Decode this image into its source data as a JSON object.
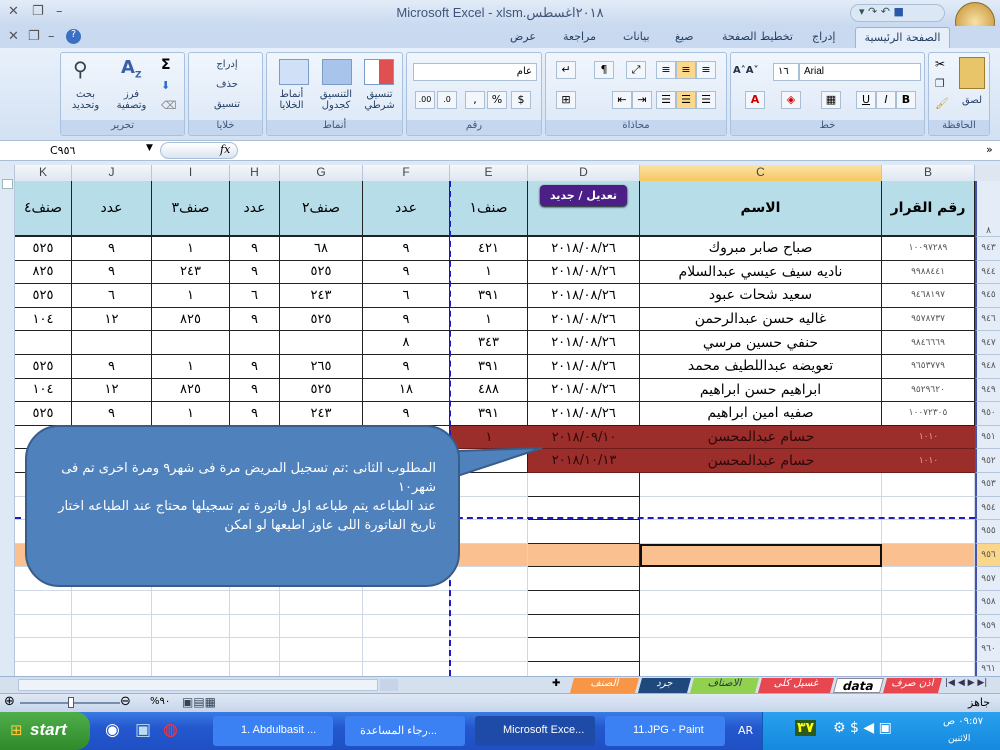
{
  "window": {
    "title": "Microsoft Excel - xlsm.٢٠١٨اغسطس"
  },
  "ribbon": {
    "tabs": [
      "الصفحة الرئيسية",
      "إدراج",
      "تخطيط الصفحة",
      "صيغ",
      "بيانات",
      "مراجعة",
      "عرض"
    ],
    "clipboard": {
      "label": "الحافظة",
      "paste": "لصق"
    },
    "font": {
      "label": "خط",
      "name": "Arial",
      "size": "١٦",
      "bold": "B",
      "italic": "I",
      "underline": "U"
    },
    "alignment": {
      "label": "محاذاة"
    },
    "number": {
      "label": "رقم",
      "format": "عام",
      "percent": "%",
      "comma": ",",
      "inc_decimal": ".00",
      "dec_decimal": ".0"
    },
    "styles": {
      "label": "أنماط",
      "conditional": "تنسيق شرطي",
      "as_table": "التنسيق كجدول",
      "cell_styles": "أنماط الخلايا"
    },
    "cells": {
      "label": "خلايا",
      "insert": "إدراج",
      "delete": "حذف",
      "format": "تنسيق"
    },
    "editing": {
      "label": "تحرير",
      "sum": "Σ",
      "sort": "فرز وتصفية",
      "find": "بحث وتحديد"
    }
  },
  "formula_bar": {
    "name_box": "C٩٥٦",
    "fx": "fx",
    "value": ""
  },
  "columns": [
    "K",
    "J",
    "I",
    "H",
    "G",
    "F",
    "E",
    "D",
    "C",
    "B"
  ],
  "header_row": {
    "row_number": "٨",
    "B": "رقم القرار",
    "C": "الاسم",
    "D_button": "تعديل / جديد",
    "E": "صنف١",
    "F": "عدد",
    "G": "صنف٢",
    "H": "عدد",
    "I": "صنف٣",
    "J": "عدد",
    "K": "صنف٤"
  },
  "rows": [
    {
      "n": "٩٤٣",
      "B": "١٠٠٩٧٢٨٩",
      "C": "صباح صابر مبروك",
      "D": "٢٠١٨/٠٨/٢٦",
      "E": "٤٢١",
      "F": "٩",
      "G": "٦٨",
      "H": "٩",
      "I": "١",
      "J": "٩",
      "K": "٥٢٥"
    },
    {
      "n": "٩٤٤",
      "B": "٩٩٨٨٤٤١",
      "C": "ناديه سيف عيسي عبدالسلام",
      "D": "٢٠١٨/٠٨/٢٦",
      "E": "١",
      "F": "٩",
      "G": "٥٢٥",
      "H": "٩",
      "I": "٢٤٣",
      "J": "٩",
      "K": "٨٢٥"
    },
    {
      "n": "٩٤٥",
      "B": "٩٤٦٨١٩٧",
      "C": "سعيد شحات عبود",
      "D": "٢٠١٨/٠٨/٢٦",
      "E": "٣٩١",
      "F": "٦",
      "G": "٢٤٣",
      "H": "٦",
      "I": "١",
      "J": "٦",
      "K": "٥٢٥"
    },
    {
      "n": "٩٤٦",
      "B": "٩٥٧٨٧٣٧",
      "C": "غاليه حسن عبدالرحمن",
      "D": "٢٠١٨/٠٨/٢٦",
      "E": "١",
      "F": "٩",
      "G": "٥٢٥",
      "H": "٩",
      "I": "٨٢٥",
      "J": "١٢",
      "K": "١٠٤"
    },
    {
      "n": "٩٤٧",
      "B": "٩٨٤٦٦٦٩",
      "C": "حنفي حسين مرسي",
      "D": "٢٠١٨/٠٨/٢٦",
      "E": "٣٤٣",
      "F": "٨",
      "G": "",
      "H": "",
      "I": "",
      "J": "",
      "K": ""
    },
    {
      "n": "٩٤٨",
      "B": "٩٦٥٣٧٧٩",
      "C": "تعويضه عبداللطيف محمد",
      "D": "٢٠١٨/٠٨/٢٦",
      "E": "٣٩١",
      "F": "٩",
      "G": "٢٦٥",
      "H": "٩",
      "I": "١",
      "J": "٩",
      "K": "٥٢٥"
    },
    {
      "n": "٩٤٩",
      "B": "٩٥٢٩٦٢٠",
      "C": "ابراهيم حسن ابراهيم",
      "D": "٢٠١٨/٠٨/٢٦",
      "E": "٤٨٨",
      "F": "١٨",
      "G": "٥٢٥",
      "H": "٩",
      "I": "٨٢٥",
      "J": "١٢",
      "K": "١٠٤"
    },
    {
      "n": "٩٥٠",
      "B": "١٠٠٧٢٣٠٥",
      "C": "صفيه امين ابراهيم",
      "D": "٢٠١٨/٠٨/٢٦",
      "E": "٣٩١",
      "F": "٩",
      "G": "٢٤٣",
      "H": "٩",
      "I": "١",
      "J": "٩",
      "K": "٥٢٥"
    },
    {
      "n": "٩٥١",
      "B": "١٠١٠",
      "C": "حسام عبدالمحسن",
      "D": "٢٠١٨/٠٩/١٠",
      "E": "١",
      "F": "",
      "G": "",
      "H": "",
      "I": "",
      "J": "",
      "K": "",
      "highlight": "#9b2d2a"
    },
    {
      "n": "٩٥٢",
      "B": "١٠١٠",
      "C": "حسام عبدالمحسن",
      "D": "٢٠١٨/١٠/١٣",
      "E": "",
      "F": "",
      "G": "",
      "H": "",
      "I": "",
      "J": "",
      "K": "",
      "highlight": "#9b2d2a"
    },
    {
      "n": "٩٥٣"
    },
    {
      "n": "٩٥٤"
    },
    {
      "n": "٩٥٥"
    },
    {
      "n": "٩٥٦",
      "selected": true,
      "highlight": "#fac090"
    },
    {
      "n": "٩٥٧"
    },
    {
      "n": "٩٥٨"
    },
    {
      "n": "٩٥٩"
    },
    {
      "n": "٩٦٠"
    },
    {
      "n": "٩٦١"
    }
  ],
  "callout": {
    "lines": [
      "المطلوب الثانى :تم تسجيل المريض مرة فى شهر٩  ومرة اخرى تم فى شهر١٠",
      "عند الطباعه يتم طباعه اول فاتورة تم تسجيلها محتاج عند الطباعه اختار تاريخ الفاتورة اللى عاوز اطبعها لو امكن"
    ]
  },
  "sheet_tabs": [
    {
      "label": "اذن صرف",
      "color": "#e8474f"
    },
    {
      "label": "data",
      "color": "#ffffff",
      "active": true
    },
    {
      "label": "غسيل كلى",
      "color": "#e8474f"
    },
    {
      "label": "الاصناف",
      "color": "#92d050"
    },
    {
      "label": "جرد",
      "color": "#1f497d"
    },
    {
      "label": "الصنف",
      "color": "#f79646"
    }
  ],
  "status": {
    "ready": "جاهز",
    "zoom": "%٩٠",
    "zoom_level": 90
  },
  "taskbar": {
    "start": "start",
    "items": [
      "1. Abdulbasit ...",
      "...رجاء المساعدة",
      "Microsoft Exce...",
      "11.JPG - Paint"
    ],
    "lang": "AR",
    "tray_num": "٣٧",
    "clock": "٠٩:٥٧ ص",
    "day": "الاثنين"
  }
}
